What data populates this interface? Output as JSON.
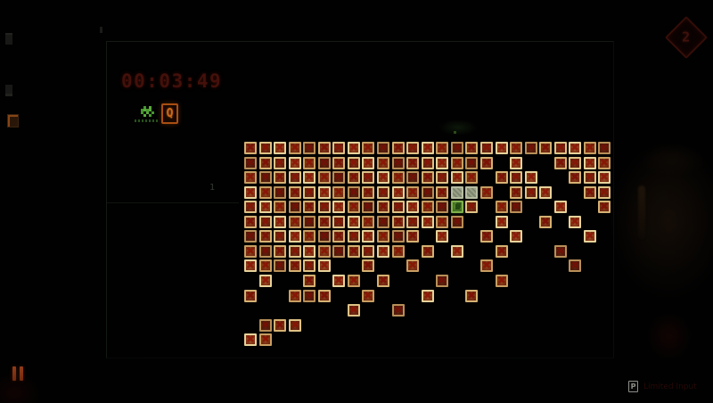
{
  "hud": {
    "timer": "00:03:49",
    "queue_badge_label": "Q",
    "row_marker": "1",
    "wave_diamond_label": "2",
    "pause_icon_glyph": "❚❚",
    "watermark": {
      "badge_label": "P",
      "hint_text": "Limited Input"
    }
  },
  "colors": {
    "background": "#010101",
    "timer_red": "#43100a",
    "tile_border_tan": "#caa468",
    "tile_inner_red": "#7c2e13",
    "tile_x_red": "#8c1606",
    "static_tile_gray": "#99a086",
    "green_tile": "#5f8f36",
    "badge_orange": "#cd6a1a",
    "diamond_red": "#41100b",
    "sprite_green": "#47962f"
  },
  "grid": {
    "cols": 25,
    "rows": 14,
    "legend": {
      "X": "x-tile",
      ".": "empty",
      "S": "static-tile",
      "G": "green-tile"
    },
    "pattern": [
      "XXXXXXXXXXXXXXXXXXXXXXXXX",
      "XXXXXXXXXXXXXXXXX.X..XXXX",
      "XXXXXXXXXXXXXXXX.XXX..XXX",
      "XXXXXXXXXXXXXXSSX.XXX..XX",
      "XXXXXXXXXXXXXXGX.XX..X..X",
      "XXXXXXXXXXXXXXX..X..X.X..",
      "XXXXXXXXXXXX.X..X.X....X.",
      "XXXXXXXXXXX.X.X..X...X...",
      "XXXXXX..X..X....X.....X..",
      ".X..X.XX.X...X...X.......",
      "X..XXX..X...X..X.........",
      ".......X..X..............",
      ".XXX.....................",
      "XX......................."
    ]
  }
}
